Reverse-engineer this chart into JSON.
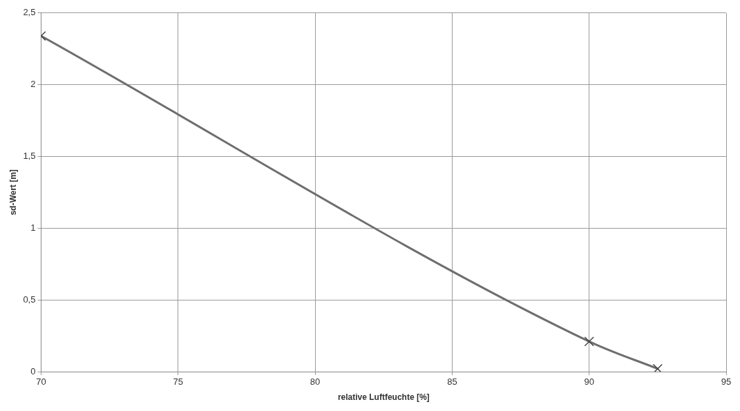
{
  "chart_data": {
    "type": "line",
    "xlabel": "relative Luftfeuchte [%]",
    "ylabel": "sd-Wert [m]",
    "x": [
      70,
      90,
      92.5
    ],
    "series": [
      {
        "color": "#6e6e6e",
        "values": [
          2.34,
          0.21,
          0.02
        ]
      }
    ],
    "xlim": [
      70,
      95
    ],
    "xticks": [
      70,
      75,
      80,
      85,
      90,
      95
    ],
    "ylim": [
      0,
      2.5
    ],
    "yticks": [
      0,
      {
        "value": 0.5,
        "label": "0,5"
      },
      1,
      {
        "value": 1.5,
        "label": "1,5"
      },
      2,
      {
        "value": 2.5,
        "label": "2,5"
      }
    ],
    "grid": true,
    "legend": false,
    "marker": "cross",
    "line_style": "solid"
  }
}
